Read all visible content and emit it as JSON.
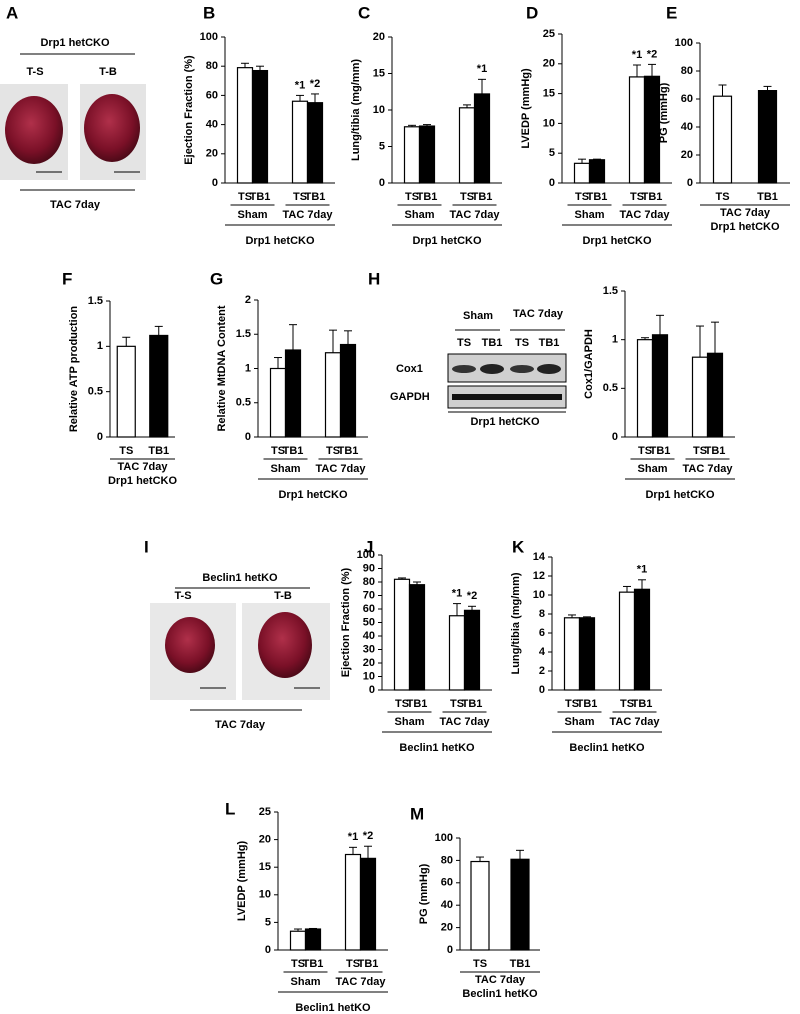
{
  "chart_data": [
    {
      "type": "bar",
      "label": "B",
      "ylabel": "Ejection Fraction (%)",
      "ylim": [
        0,
        100
      ],
      "yticks": [
        0,
        20,
        40,
        60,
        80,
        100
      ],
      "categories": [
        "Sham",
        "TAC 7day"
      ],
      "group": "Drp1 hetCKO",
      "series": [
        {
          "name": "TS",
          "color": "#ffffff",
          "values": [
            79,
            56
          ],
          "errors": [
            3,
            4
          ],
          "significance": [
            null,
            "*1"
          ]
        },
        {
          "name": "TB1",
          "color": "#000000",
          "values": [
            77,
            55
          ],
          "errors": [
            3,
            6
          ],
          "significance": [
            null,
            "*2"
          ]
        }
      ]
    },
    {
      "type": "bar",
      "label": "C",
      "ylabel": "Lung/tibia (mg/mm)",
      "ylim": [
        0,
        20
      ],
      "yticks": [
        0,
        5,
        10,
        15,
        20
      ],
      "categories": [
        "Sham",
        "TAC 7day"
      ],
      "group": "Drp1 hetCKO",
      "series": [
        {
          "name": "TS",
          "color": "#ffffff",
          "values": [
            7.7,
            10.3
          ],
          "errors": [
            0.2,
            0.4
          ],
          "significance": [
            null,
            null
          ]
        },
        {
          "name": "TB1",
          "color": "#000000",
          "values": [
            7.8,
            12.2
          ],
          "errors": [
            0.2,
            2
          ],
          "significance": [
            null,
            "*1"
          ]
        }
      ]
    },
    {
      "type": "bar",
      "label": "D",
      "ylabel": "LVEDP (mmHg)",
      "ylim": [
        0,
        25
      ],
      "yticks": [
        0,
        5,
        10,
        15,
        20,
        25
      ],
      "categories": [
        "Sham",
        "TAC 7day"
      ],
      "group": "Drp1 hetCKO",
      "series": [
        {
          "name": "TS",
          "color": "#ffffff",
          "values": [
            3.3,
            17.8
          ],
          "errors": [
            0.7,
            2
          ],
          "significance": [
            null,
            "*1"
          ]
        },
        {
          "name": "TB1",
          "color": "#000000",
          "values": [
            3.9,
            17.9
          ],
          "errors": [
            0.1,
            2
          ],
          "significance": [
            null,
            "*2"
          ]
        }
      ]
    },
    {
      "type": "bar",
      "label": "E",
      "ylabel": "PG (mmHg)",
      "ylim": [
        0,
        100
      ],
      "yticks": [
        0,
        20,
        40,
        60,
        80,
        100
      ],
      "categories": [
        "TAC 7day"
      ],
      "group": "Drp1 hetCKO",
      "series": [
        {
          "name": "TS",
          "color": "#ffffff",
          "values": [
            62
          ],
          "errors": [
            8
          ],
          "significance": [
            null
          ]
        },
        {
          "name": "TB1",
          "color": "#000000",
          "values": [
            66
          ],
          "errors": [
            3
          ],
          "significance": [
            null
          ]
        }
      ]
    },
    {
      "type": "bar",
      "label": "F",
      "ylabel": "Relative ATP production",
      "ylim": [
        0,
        1.5
      ],
      "yticks": [
        0,
        0.5,
        1,
        1.5
      ],
      "categories": [
        "TAC 7day"
      ],
      "group": "Drp1 hetCKO",
      "series": [
        {
          "name": "TS",
          "color": "#ffffff",
          "values": [
            1.0
          ],
          "errors": [
            0.1
          ],
          "significance": [
            null
          ]
        },
        {
          "name": "TB1",
          "color": "#000000",
          "values": [
            1.12
          ],
          "errors": [
            0.1
          ],
          "significance": [
            null
          ]
        }
      ]
    },
    {
      "type": "bar",
      "label": "G",
      "ylabel": "Relative MtDNA Content",
      "ylim": [
        0,
        2
      ],
      "yticks": [
        0,
        0.5,
        1,
        1.5,
        2
      ],
      "categories": [
        "Sham",
        "TAC 7day"
      ],
      "group": "Drp1 hetCKO",
      "series": [
        {
          "name": "TS",
          "color": "#ffffff",
          "values": [
            1.0,
            1.23
          ],
          "errors": [
            0.16,
            0.33
          ],
          "significance": [
            null,
            null
          ]
        },
        {
          "name": "TB1",
          "color": "#000000",
          "values": [
            1.27,
            1.35
          ],
          "errors": [
            0.37,
            0.2
          ],
          "significance": [
            null,
            null
          ]
        }
      ]
    },
    {
      "type": "bar",
      "ylabel": "Cox1/GAPDH",
      "ylim": [
        0,
        1.5
      ],
      "yticks": [
        0,
        0.5,
        1,
        1.5
      ],
      "categories": [
        "Sham",
        "TAC 7day"
      ],
      "group": "Drp1 hetCKO",
      "series": [
        {
          "name": "TS",
          "color": "#ffffff",
          "values": [
            1.0,
            0.82
          ],
          "errors": [
            0.02,
            0.32
          ],
          "significance": [
            null,
            null
          ]
        },
        {
          "name": "TB1",
          "color": "#000000",
          "values": [
            1.05,
            0.86
          ],
          "errors": [
            0.2,
            0.32
          ],
          "significance": [
            null,
            null
          ]
        }
      ]
    },
    {
      "type": "bar",
      "label": "J",
      "ylabel": "Ejection Fraction (%)",
      "ylim": [
        0,
        100
      ],
      "yticks": [
        0,
        10,
        20,
        30,
        40,
        50,
        60,
        70,
        80,
        90,
        100
      ],
      "categories": [
        "Sham",
        "TAC 7day"
      ],
      "group": "Beclin1 hetKO",
      "series": [
        {
          "name": "TS",
          "color": "#ffffff",
          "values": [
            82,
            55
          ],
          "errors": [
            1,
            9
          ],
          "significance": [
            null,
            "*1"
          ]
        },
        {
          "name": "TB1",
          "color": "#000000",
          "values": [
            78,
            59
          ],
          "errors": [
            2,
            3
          ],
          "significance": [
            null,
            "*2"
          ]
        }
      ]
    },
    {
      "type": "bar",
      "label": "K",
      "ylabel": "Lung/tibia (mg/mm)",
      "ylim": [
        0,
        14
      ],
      "yticks": [
        0,
        2,
        4,
        6,
        8,
        10,
        12,
        14
      ],
      "categories": [
        "Sham",
        "TAC 7day"
      ],
      "group": "Beclin1 hetKO",
      "series": [
        {
          "name": "TS",
          "color": "#ffffff",
          "values": [
            7.6,
            10.3
          ],
          "errors": [
            0.3,
            0.6
          ],
          "significance": [
            null,
            null
          ]
        },
        {
          "name": "TB1",
          "color": "#000000",
          "values": [
            7.6,
            10.6
          ],
          "errors": [
            0.1,
            1
          ],
          "significance": [
            null,
            "*1"
          ]
        }
      ]
    },
    {
      "type": "bar",
      "label": "L",
      "ylabel": "LVEDP (mmHg)",
      "ylim": [
        0,
        25
      ],
      "yticks": [
        0,
        5,
        10,
        15,
        20,
        25
      ],
      "categories": [
        "Sham",
        "TAC 7day"
      ],
      "group": "Beclin1 hetKO",
      "series": [
        {
          "name": "TS",
          "color": "#ffffff",
          "values": [
            3.4,
            17.3
          ],
          "errors": [
            0.4,
            1.3
          ],
          "significance": [
            null,
            "*1"
          ]
        },
        {
          "name": "TB1",
          "color": "#000000",
          "values": [
            3.8,
            16.6
          ],
          "errors": [
            0.1,
            2.2
          ],
          "significance": [
            null,
            "*2"
          ]
        }
      ]
    },
    {
      "type": "bar",
      "label": "M",
      "ylabel": "PG (mmHg)",
      "ylim": [
        0,
        100
      ],
      "yticks": [
        0,
        20,
        40,
        60,
        80,
        100
      ],
      "categories": [
        "TAC 7day"
      ],
      "group": "Beclin1 hetKO",
      "series": [
        {
          "name": "TS",
          "color": "#ffffff",
          "values": [
            79
          ],
          "errors": [
            4
          ],
          "significance": [
            null
          ]
        },
        {
          "name": "TB1",
          "color": "#000000",
          "values": [
            81
          ],
          "errors": [
            8
          ],
          "significance": [
            null
          ]
        }
      ]
    }
  ],
  "photo_panels": [
    {
      "label": "A",
      "group": "Drp1 hetCKO",
      "samples": [
        "T-S",
        "T-B"
      ],
      "condition": "TAC 7day"
    },
    {
      "label": "I",
      "group": "Beclin1 hetKO",
      "samples": [
        "T-S",
        "T-B"
      ],
      "condition": "TAC 7day"
    }
  ],
  "blot": {
    "label": "H",
    "conditions": [
      "Sham",
      "TAC 7day"
    ],
    "lanes": [
      "TS",
      "TB1",
      "TS",
      "TB1"
    ],
    "rows": [
      "Cox1",
      "GAPDH"
    ],
    "group": "Drp1 hetCKO"
  }
}
